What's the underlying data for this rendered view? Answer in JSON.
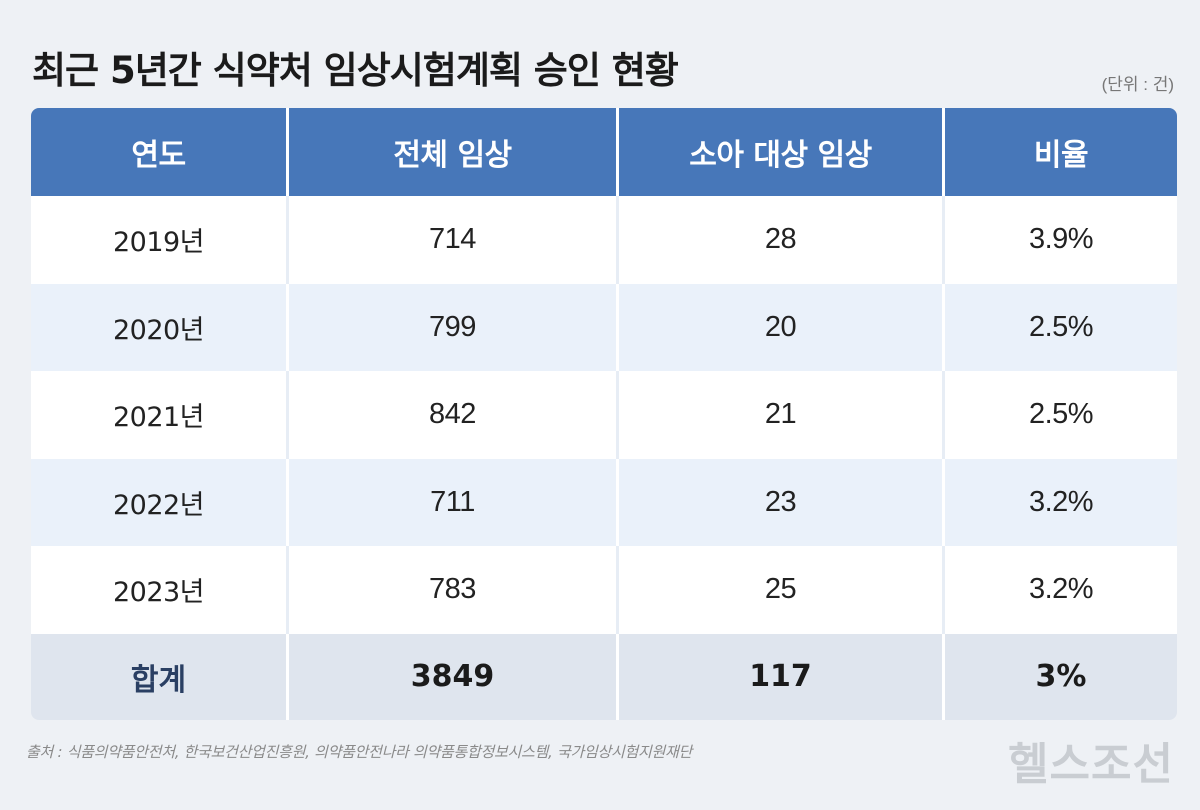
{
  "title": "최근 5년간 식약처 임상시험계획 승인 현황",
  "unit": "(단위 : 건)",
  "chart_data": {
    "type": "table",
    "columns": [
      "연도",
      "전체 임상",
      "소아 대상 임상",
      "비율"
    ],
    "rows": [
      [
        "2019년",
        "714",
        "28",
        "3.9%"
      ],
      [
        "2020년",
        "799",
        "20",
        "2.5%"
      ],
      [
        "2021년",
        "842",
        "21",
        "2.5%"
      ],
      [
        "2022년",
        "711",
        "23",
        "3.2%"
      ],
      [
        "2023년",
        "783",
        "25",
        "3.2%"
      ]
    ],
    "total": [
      "합계",
      "3849",
      "117",
      "3%"
    ]
  },
  "source": "출처 : 식품의약품안전처, 한국보건산업진흥원, 의약품안전나라 의약품통합정보시스템, 국가임상시험지원재단",
  "logo": "헬스조선",
  "colors": {
    "header_bg": "#4777b9",
    "row_alt_bg": "#eaf1fa",
    "total_bg": "#dfe5ee",
    "page_bg": "#eef1f5"
  }
}
